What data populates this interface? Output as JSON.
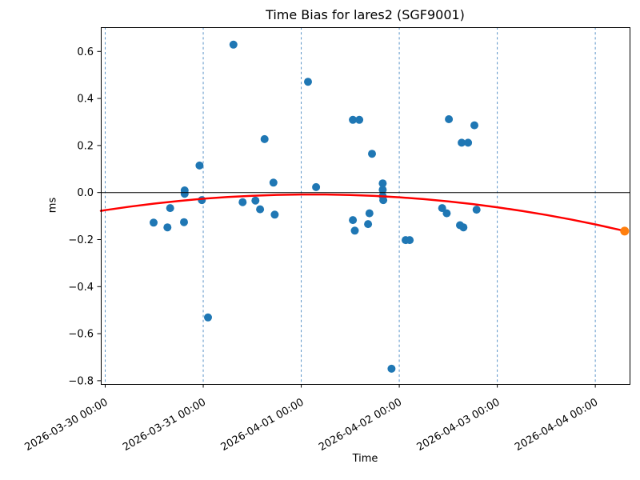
{
  "chart_data": {
    "type": "scatter",
    "title": "Time Bias for lares2 (SGF9001)",
    "xlabel": "Time",
    "ylabel": "ms",
    "x_axis_unit": "days since 2026-03-30 00:00",
    "xlim_days": [
      -0.045,
      5.35
    ],
    "ylim": [
      -0.814,
      0.703
    ],
    "x_ticks": [
      {
        "t": 0,
        "label": "2026-03-30 00:00"
      },
      {
        "t": 1,
        "label": "2026-03-31 00:00"
      },
      {
        "t": 2,
        "label": "2026-04-01 00:00"
      },
      {
        "t": 3,
        "label": "2026-04-02 00:00"
      },
      {
        "t": 4,
        "label": "2026-04-03 00:00"
      },
      {
        "t": 5,
        "label": "2026-04-04 00:00"
      }
    ],
    "y_ticks": [
      {
        "v": 0.6,
        "label": "0.6"
      },
      {
        "v": 0.4,
        "label": "0.4"
      },
      {
        "v": 0.2,
        "label": "0.2"
      },
      {
        "v": 0.0,
        "label": "0.0"
      },
      {
        "v": -0.2,
        "label": "−0.2"
      },
      {
        "v": -0.4,
        "label": "−0.4"
      },
      {
        "v": -0.6,
        "label": "−0.6"
      },
      {
        "v": -0.8,
        "label": "−0.8"
      }
    ],
    "grid": {
      "vertical": true,
      "style": "dashed",
      "color": "#5b94c8"
    },
    "zero_line": {
      "show": true,
      "color": "#000000"
    },
    "series": [
      {
        "name": "time-bias-observations",
        "type": "scatter",
        "color": "#1f77b4",
        "marker_radius": 5,
        "points": [
          [
            0.494,
            -0.128
          ],
          [
            0.635,
            -0.148
          ],
          [
            0.663,
            -0.066
          ],
          [
            0.804,
            -0.126
          ],
          [
            0.81,
            0.009
          ],
          [
            0.81,
            -0.005
          ],
          [
            0.962,
            0.115
          ],
          [
            0.986,
            -0.032
          ],
          [
            1.049,
            -0.531
          ],
          [
            1.308,
            0.629
          ],
          [
            1.402,
            -0.041
          ],
          [
            1.533,
            -0.034
          ],
          [
            1.58,
            -0.071
          ],
          [
            1.626,
            0.227
          ],
          [
            1.716,
            0.042
          ],
          [
            1.729,
            -0.094
          ],
          [
            2.069,
            0.471
          ],
          [
            2.151,
            0.023
          ],
          [
            2.527,
            0.309
          ],
          [
            2.592,
            0.309
          ],
          [
            2.722,
            0.165
          ],
          [
            2.527,
            -0.117
          ],
          [
            2.546,
            -0.162
          ],
          [
            2.682,
            -0.134
          ],
          [
            2.696,
            -0.088
          ],
          [
            2.831,
            0.039
          ],
          [
            2.831,
            0.012
          ],
          [
            2.831,
            -0.015
          ],
          [
            2.837,
            -0.032
          ],
          [
            2.921,
            -0.749
          ],
          [
            3.065,
            -0.202
          ],
          [
            3.106,
            -0.202
          ],
          [
            3.506,
            0.312
          ],
          [
            3.438,
            -0.066
          ],
          [
            3.484,
            -0.088
          ],
          [
            3.62,
            -0.139
          ],
          [
            3.655,
            -0.148
          ],
          [
            3.637,
            0.212
          ],
          [
            3.702,
            0.212
          ],
          [
            3.767,
            0.286
          ],
          [
            3.789,
            -0.073
          ]
        ]
      },
      {
        "name": "quadratic-fit-curve",
        "type": "line",
        "color": "#ff0000",
        "width": 2.5,
        "points": [
          [
            -0.045,
            -0.0779
          ],
          [
            0,
            -0.075
          ],
          [
            0.25,
            -0.06
          ],
          [
            0.5,
            -0.0469
          ],
          [
            0.75,
            -0.0357
          ],
          [
            1,
            -0.0264
          ],
          [
            1.25,
            -0.019
          ],
          [
            1.5,
            -0.0135
          ],
          [
            1.75,
            -0.0098
          ],
          [
            2,
            -0.0081
          ],
          [
            2.25,
            -0.0083
          ],
          [
            2.5,
            -0.0104
          ],
          [
            2.75,
            -0.0144
          ],
          [
            3,
            -0.0202
          ],
          [
            3.25,
            -0.028
          ],
          [
            3.5,
            -0.0377
          ],
          [
            3.75,
            -0.0492
          ],
          [
            4,
            -0.0627
          ],
          [
            4.25,
            -0.078
          ],
          [
            4.5,
            -0.0953
          ],
          [
            4.75,
            -0.1144
          ],
          [
            5,
            -0.1355
          ],
          [
            5.25,
            -0.1585
          ],
          [
            5.299,
            -0.1633
          ]
        ]
      },
      {
        "name": "predicted-bias-point",
        "type": "scatter",
        "color": "#ff7f0e",
        "marker_radius": 5.5,
        "points": [
          [
            5.299,
            -0.164
          ]
        ]
      }
    ]
  }
}
